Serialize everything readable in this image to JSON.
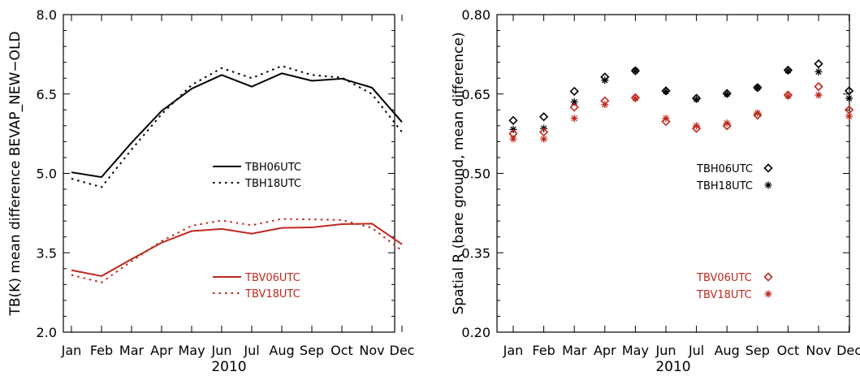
{
  "chart_data": [
    {
      "type": "line",
      "title": "",
      "xlabel": "2010",
      "ylabel": "TB(K) mean difference BEVAP_NEW−OLD",
      "categories": [
        "Jan",
        "Feb",
        "Mar",
        "Apr",
        "May",
        "Jun",
        "Jul",
        "Aug",
        "Sep",
        "Oct",
        "Nov",
        "Dec"
      ],
      "ylim": [
        2.0,
        8.0
      ],
      "yticks": [
        "2.0",
        "3.5",
        "5.0",
        "6.5",
        "8.0"
      ],
      "grid": false,
      "legend": "center-right",
      "series": [
        {
          "name": "TBH06UTC",
          "color": "#000000",
          "style": "solid",
          "values": [
            5.02,
            4.93,
            5.58,
            6.18,
            6.6,
            6.86,
            6.64,
            6.89,
            6.75,
            6.79,
            6.62,
            5.97
          ]
        },
        {
          "name": "TBH18UTC",
          "color": "#000000",
          "style": "dotted",
          "values": [
            4.9,
            4.74,
            5.45,
            6.12,
            6.67,
            6.99,
            6.8,
            7.03,
            6.86,
            6.81,
            6.5,
            5.78
          ]
        },
        {
          "name": "TBV06UTC",
          "color": "#c0281e",
          "style": "solid",
          "values": [
            3.17,
            3.06,
            3.38,
            3.69,
            3.91,
            3.95,
            3.86,
            3.97,
            3.98,
            4.04,
            4.05,
            3.66
          ]
        },
        {
          "name": "TBV18UTC",
          "color": "#c0281e",
          "style": "dotted",
          "values": [
            3.08,
            2.94,
            3.34,
            3.72,
            4.01,
            4.11,
            4.02,
            4.14,
            4.13,
            4.12,
            3.97,
            3.54
          ]
        }
      ]
    },
    {
      "type": "scatter",
      "title": "",
      "xlabel": "2010",
      "ylabel": "Spatial R (bare ground, mean difference)",
      "categories": [
        "Jan",
        "Feb",
        "Mar",
        "Apr",
        "May",
        "Jun",
        "Jul",
        "Aug",
        "Sep",
        "Oct",
        "Nov",
        "Dec"
      ],
      "ylim": [
        0.2,
        0.8
      ],
      "yticks": [
        "0.20",
        "0.35",
        "0.50",
        "0.65",
        "0.80"
      ],
      "grid": false,
      "legend": "center-right",
      "series": [
        {
          "name": "TBH06UTC",
          "color": "#000000",
          "marker": "diamond",
          "values": [
            0.6,
            0.607,
            0.655,
            0.682,
            0.694,
            0.656,
            0.642,
            0.651,
            0.662,
            0.695,
            0.707,
            0.656
          ]
        },
        {
          "name": "TBH18UTC",
          "color": "#000000",
          "marker": "asterisk",
          "values": [
            0.583,
            0.585,
            0.635,
            0.676,
            0.694,
            0.655,
            0.64,
            0.65,
            0.662,
            0.694,
            0.692,
            0.642
          ]
        },
        {
          "name": "TBV06UTC",
          "color": "#c0281e",
          "marker": "diamond",
          "values": [
            0.575,
            0.578,
            0.625,
            0.637,
            0.643,
            0.598,
            0.585,
            0.59,
            0.61,
            0.648,
            0.664,
            0.62
          ]
        },
        {
          "name": "TBV18UTC",
          "color": "#c0281e",
          "marker": "asterisk",
          "values": [
            0.565,
            0.565,
            0.604,
            0.63,
            0.642,
            0.604,
            0.59,
            0.595,
            0.614,
            0.646,
            0.648,
            0.608
          ]
        }
      ]
    }
  ]
}
